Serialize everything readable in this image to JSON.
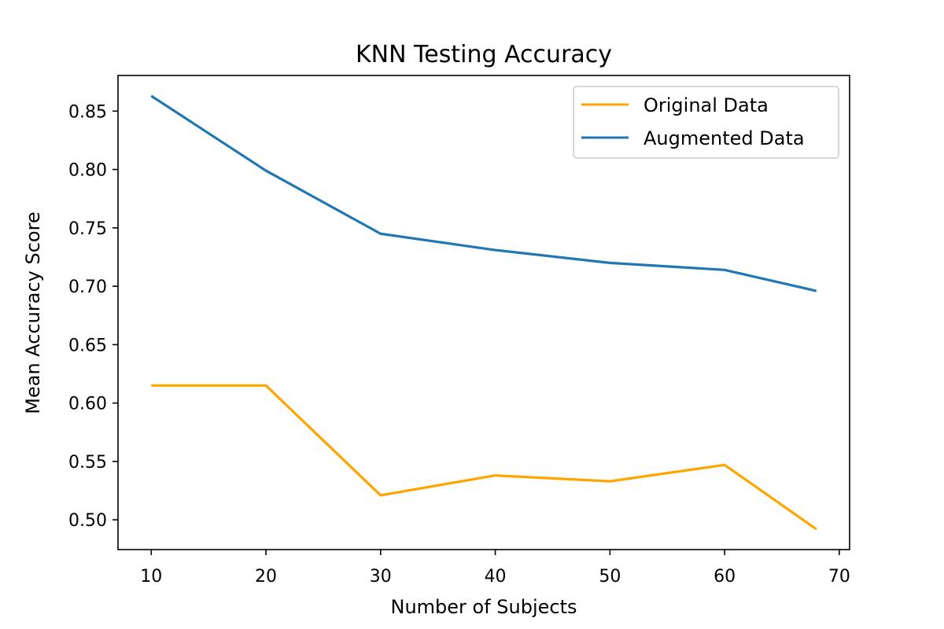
{
  "chart_data": {
    "type": "line",
    "title": "KNN Testing Accuracy",
    "xlabel": "Number of Subjects",
    "ylabel": "Mean Accuracy Score",
    "xlim": [
      7.1,
      70.9
    ],
    "ylim": [
      0.4745,
      0.8805
    ],
    "xticks": [
      10,
      20,
      30,
      40,
      50,
      60,
      70
    ],
    "xtick_labels": [
      "10",
      "20",
      "30",
      "40",
      "50",
      "60",
      "70"
    ],
    "yticks": [
      0.5,
      0.55,
      0.6,
      0.65,
      0.7,
      0.75,
      0.8,
      0.85
    ],
    "ytick_labels": [
      "0.50",
      "0.55",
      "0.60",
      "0.65",
      "0.70",
      "0.75",
      "0.80",
      "0.85"
    ],
    "grid": false,
    "legend_position": "top-right",
    "x": [
      10,
      20,
      30,
      40,
      50,
      60,
      68
    ],
    "series": [
      {
        "name": "Original Data",
        "color": "#ffa500",
        "values": [
          0.615,
          0.615,
          0.521,
          0.538,
          0.533,
          0.547,
          0.492
        ]
      },
      {
        "name": "Augmented Data",
        "color": "#1f77b4",
        "values": [
          0.863,
          0.799,
          0.745,
          0.731,
          0.72,
          0.714,
          0.696
        ]
      }
    ]
  }
}
